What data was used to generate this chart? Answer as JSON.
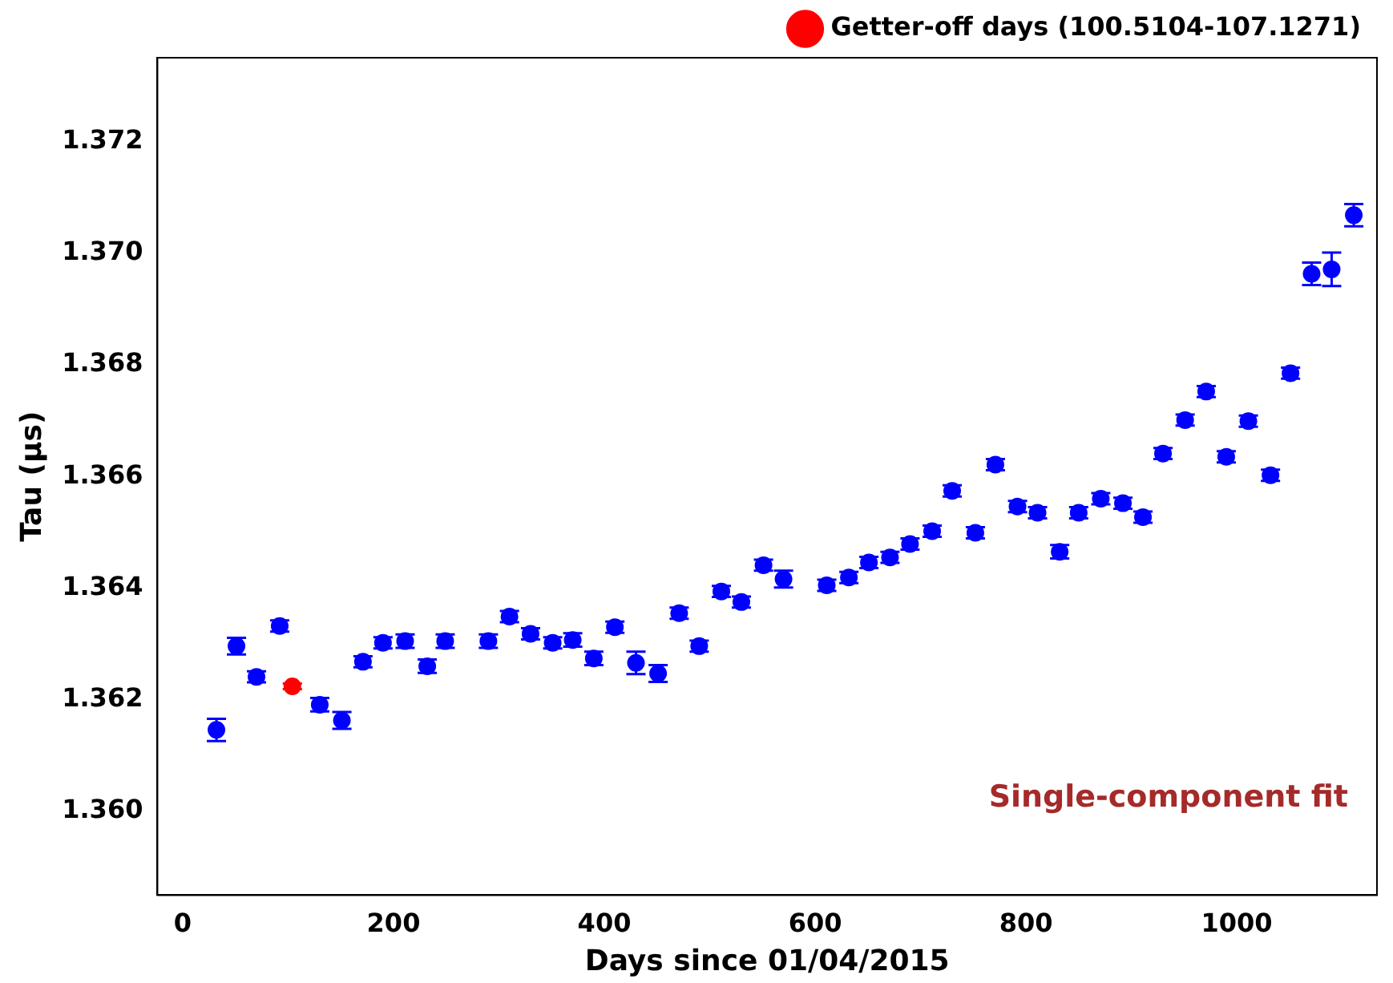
{
  "chart_data": {
    "type": "scatter",
    "xlabel": "Days since 01/04/2015",
    "ylabel": "Tau (µs)",
    "xlim": [
      -24,
      1133
    ],
    "xticks": [
      0,
      200,
      400,
      600,
      800,
      1000
    ],
    "ylim": [
      1.3585,
      1.3735
    ],
    "yticks": [
      {
        "value": 1.36,
        "label": "1.360"
      },
      1.362,
      1.364,
      1.366,
      1.368,
      {
        "value": 1.37,
        "label": "1.370"
      },
      1.372
    ],
    "grid": false,
    "legend": "top right",
    "marker": "circle",
    "annotations": [
      "Single-component fit"
    ],
    "series": [
      {
        "color": "#0000ff",
        "x": [
          32,
          51,
          70,
          92,
          130,
          151,
          171,
          190,
          211,
          232,
          249,
          290,
          310,
          330,
          351,
          370,
          390,
          410,
          430,
          451,
          471,
          490,
          511,
          530,
          551,
          570,
          611,
          632,
          651,
          671,
          690,
          711,
          730,
          752,
          771,
          792,
          811,
          832,
          850,
          871,
          892,
          911,
          930,
          951,
          971,
          990,
          1011,
          1032,
          1051,
          1071,
          1090,
          1111
        ],
        "values": [
          1.36146,
          1.36296,
          1.36241,
          1.36332,
          1.36191,
          1.36163,
          1.36268,
          1.36302,
          1.36305,
          1.3626,
          1.36305,
          1.36305,
          1.36349,
          1.36318,
          1.36302,
          1.36307,
          1.36274,
          1.3633,
          1.36266,
          1.36247,
          1.36355,
          1.36296,
          1.36394,
          1.36375,
          1.36441,
          1.36416,
          1.36405,
          1.36419,
          1.36446,
          1.36455,
          1.36479,
          1.36502,
          1.36574,
          1.36499,
          1.36621,
          1.36546,
          1.36535,
          1.36465,
          1.36535,
          1.3656,
          1.36552,
          1.36527,
          1.36641,
          1.36701,
          1.36752,
          1.36635,
          1.36699,
          1.36602,
          1.36785,
          1.36963,
          1.36971,
          1.37068
        ],
        "errors": [
          0.0002,
          0.00015,
          0.0001,
          0.0001,
          0.00012,
          0.00015,
          0.0001,
          0.0001,
          0.00012,
          0.00012,
          0.00012,
          0.00012,
          0.0001,
          0.0001,
          0.0001,
          0.00012,
          0.00012,
          0.0001,
          0.0002,
          0.00015,
          0.0001,
          0.0001,
          0.0001,
          0.0001,
          0.0001,
          0.00015,
          0.0001,
          0.0001,
          0.0001,
          0.0001,
          0.0001,
          0.0001,
          0.0001,
          0.0001,
          0.0001,
          0.0001,
          0.0001,
          0.00012,
          0.0001,
          0.0001,
          0.0001,
          0.0001,
          0.0001,
          0.0001,
          0.0001,
          0.0001,
          0.0001,
          0.0001,
          0.0001,
          0.0002,
          0.0003,
          0.0002
        ]
      },
      {
        "name": "Getter-off days (100.5104-107.1271)",
        "color": "#ff0000",
        "x": [
          104
        ],
        "values": [
          1.36224
        ],
        "errors": [
          5e-05
        ]
      }
    ]
  }
}
